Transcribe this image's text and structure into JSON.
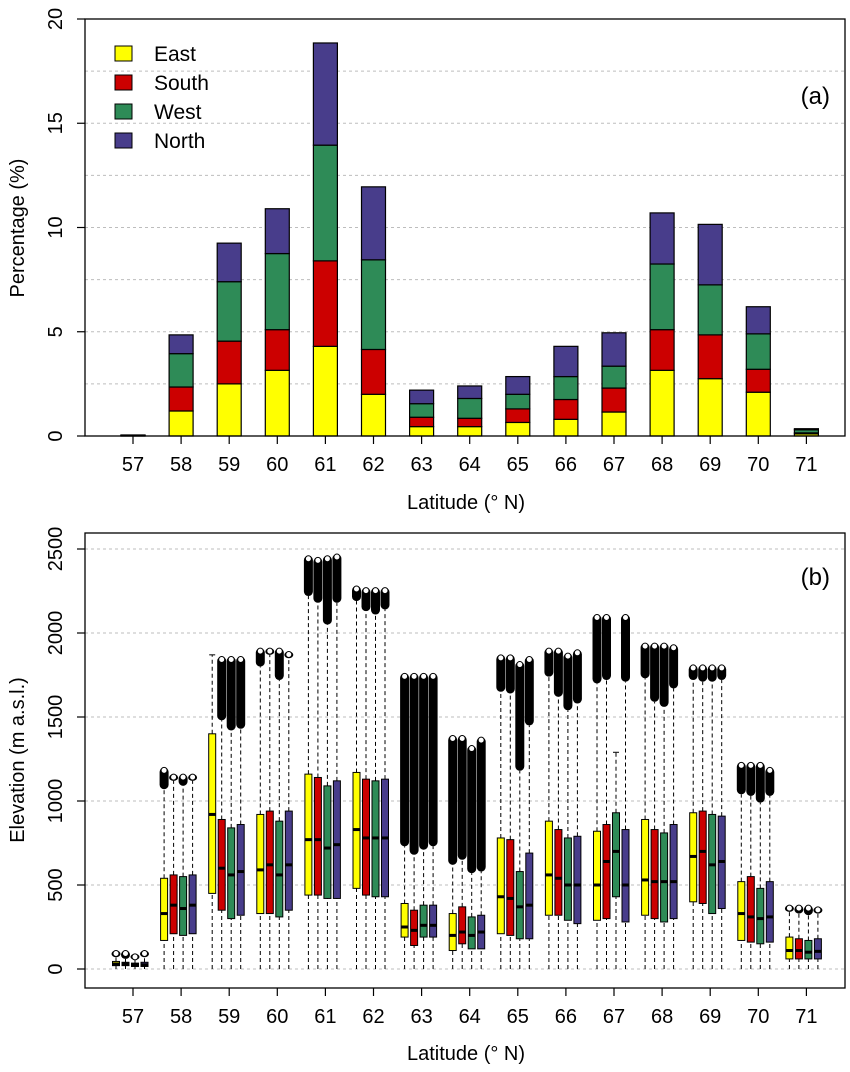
{
  "chart_data": [
    {
      "type": "bar",
      "stacked": true,
      "panel_label": "(a)",
      "title": "",
      "xlabel": "Latitude (° N)",
      "ylabel": "Percentage (%)",
      "ylim": [
        0,
        20
      ],
      "yticks": [
        0,
        5,
        10,
        15,
        20
      ],
      "grid": "horizontal dotted every 2.5 units",
      "legend_position": "top-left",
      "categories": [
        "57",
        "58",
        "59",
        "60",
        "61",
        "62",
        "63",
        "64",
        "65",
        "66",
        "67",
        "68",
        "69",
        "70",
        "71"
      ],
      "series": [
        {
          "name": "East",
          "color": "#ffff00",
          "values": [
            0.02,
            1.2,
            2.5,
            3.15,
            4.3,
            2.0,
            0.45,
            0.45,
            0.65,
            0.8,
            1.15,
            3.15,
            2.75,
            2.1,
            0.1
          ]
        },
        {
          "name": "South",
          "color": "#cc0000",
          "values": [
            0.01,
            1.15,
            2.05,
            1.95,
            4.1,
            2.15,
            0.45,
            0.4,
            0.65,
            0.95,
            1.15,
            1.95,
            2.1,
            1.1,
            0.05
          ]
        },
        {
          "name": "West",
          "color": "#2e8b57",
          "values": [
            0.01,
            1.6,
            2.85,
            3.65,
            5.55,
            4.3,
            0.65,
            0.95,
            0.7,
            1.1,
            1.05,
            3.15,
            2.4,
            1.7,
            0.15
          ]
        },
        {
          "name": "North",
          "color": "#483d8b",
          "values": [
            0.01,
            0.9,
            1.85,
            2.15,
            4.9,
            3.5,
            0.65,
            0.6,
            0.85,
            1.45,
            1.6,
            2.45,
            2.9,
            1.3,
            0.05
          ]
        }
      ]
    },
    {
      "type": "boxplot",
      "panel_label": "(b)",
      "title": "",
      "xlabel": "Latitude (° N)",
      "ylabel": "Elevation (m a.s.l.)",
      "ylim": [
        0,
        2500
      ],
      "yticks": [
        0,
        500,
        1000,
        1500,
        2000,
        2500
      ],
      "grid": "horizontal dotted every 500 units",
      "categories": [
        "57",
        "58",
        "59",
        "60",
        "61",
        "62",
        "63",
        "64",
        "65",
        "66",
        "67",
        "68",
        "69",
        "70",
        "71"
      ],
      "series_order": [
        "East",
        "South",
        "West",
        "North"
      ],
      "series_colors": [
        "#ffff00",
        "#cc0000",
        "#2e8b57",
        "#483d8b"
      ],
      "boxes": [
        [
          [
            0,
            20,
            30,
            45,
            70,
            70,
            110
          ],
          [
            0,
            20,
            30,
            40,
            60,
            60,
            110
          ],
          [
            0,
            15,
            25,
            35,
            55,
            55,
            90
          ],
          [
            0,
            15,
            25,
            40,
            70,
            70,
            110
          ]
        ],
        [
          [
            0,
            170,
            330,
            540,
            1070,
            1070,
            1200
          ],
          [
            0,
            210,
            380,
            560,
            1120,
            1120,
            1160
          ],
          [
            0,
            200,
            360,
            550,
            1090,
            1090,
            1160
          ],
          [
            0,
            210,
            380,
            560,
            1120,
            1120,
            1160
          ]
        ],
        [
          [
            0,
            450,
            920,
            1400,
            1870,
            0,
            0
          ],
          [
            0,
            350,
            600,
            890,
            1480,
            1480,
            1860
          ],
          [
            0,
            300,
            560,
            840,
            1420,
            1420,
            1860
          ],
          [
            0,
            320,
            580,
            860,
            1430,
            1430,
            1860
          ]
        ],
        [
          [
            0,
            330,
            590,
            920,
            1800,
            1800,
            1910
          ],
          [
            0,
            330,
            620,
            940,
            1870,
            1870,
            1910
          ],
          [
            0,
            310,
            560,
            880,
            1720,
            1720,
            1910
          ],
          [
            0,
            350,
            620,
            940,
            1850,
            1850,
            1890
          ]
        ],
        [
          [
            0,
            440,
            770,
            1160,
            2220,
            2220,
            2460
          ],
          [
            0,
            440,
            770,
            1140,
            2180,
            2180,
            2450
          ],
          [
            0,
            420,
            720,
            1090,
            2050,
            2050,
            2460
          ],
          [
            0,
            420,
            740,
            1120,
            2180,
            2180,
            2470
          ]
        ],
        [
          [
            0,
            480,
            830,
            1170,
            2190,
            2190,
            2280
          ],
          [
            0,
            440,
            780,
            1130,
            2130,
            2130,
            2270
          ],
          [
            0,
            430,
            780,
            1120,
            2110,
            2110,
            2270
          ],
          [
            0,
            430,
            780,
            1130,
            2140,
            2140,
            2270
          ]
        ],
        [
          [
            0,
            190,
            250,
            390,
            730,
            730,
            1760
          ],
          [
            0,
            140,
            230,
            350,
            680,
            680,
            1760
          ],
          [
            0,
            190,
            260,
            380,
            710,
            710,
            1760
          ],
          [
            0,
            190,
            260,
            380,
            730,
            730,
            1760
          ]
        ],
        [
          [
            0,
            110,
            200,
            330,
            620,
            620,
            1390
          ],
          [
            0,
            150,
            220,
            370,
            650,
            650,
            1390
          ],
          [
            0,
            120,
            200,
            310,
            570,
            570,
            1330
          ],
          [
            0,
            120,
            220,
            320,
            580,
            580,
            1380
          ]
        ],
        [
          [
            0,
            210,
            430,
            780,
            1650,
            1650,
            1870
          ],
          [
            0,
            200,
            420,
            770,
            1640,
            1640,
            1870
          ],
          [
            0,
            180,
            370,
            580,
            1180,
            1180,
            1830
          ],
          [
            0,
            180,
            380,
            690,
            1450,
            1450,
            1860
          ]
        ],
        [
          [
            0,
            320,
            560,
            880,
            1740,
            1740,
            1910
          ],
          [
            0,
            320,
            540,
            830,
            1620,
            1620,
            1910
          ],
          [
            0,
            290,
            500,
            780,
            1540,
            1540,
            1880
          ],
          [
            0,
            270,
            500,
            790,
            1580,
            1580,
            1900
          ]
        ],
        [
          [
            0,
            290,
            500,
            820,
            1700,
            1700,
            2110
          ],
          [
            0,
            300,
            640,
            860,
            1720,
            1720,
            2110
          ],
          [
            0,
            430,
            700,
            930,
            1290,
            0,
            0
          ],
          [
            0,
            280,
            500,
            830,
            1710,
            1710,
            2110
          ]
        ],
        [
          [
            0,
            320,
            530,
            890,
            1730,
            1730,
            1940
          ],
          [
            0,
            300,
            520,
            830,
            1590,
            1590,
            1940
          ],
          [
            0,
            280,
            520,
            810,
            1560,
            1560,
            1940
          ],
          [
            0,
            300,
            520,
            860,
            1670,
            1670,
            1930
          ]
        ],
        [
          [
            0,
            400,
            670,
            930,
            1720,
            1720,
            1810
          ],
          [
            0,
            390,
            700,
            940,
            1710,
            1710,
            1810
          ],
          [
            0,
            330,
            620,
            920,
            1710,
            1710,
            1810
          ],
          [
            0,
            360,
            640,
            910,
            1720,
            1720,
            1810
          ]
        ],
        [
          [
            0,
            170,
            330,
            520,
            1040,
            1040,
            1230
          ],
          [
            0,
            160,
            310,
            550,
            1030,
            1030,
            1230
          ],
          [
            0,
            150,
            300,
            480,
            990,
            990,
            1230
          ],
          [
            0,
            160,
            310,
            520,
            1030,
            1030,
            1200
          ]
        ],
        [
          [
            0,
            60,
            110,
            190,
            340,
            340,
            380
          ],
          [
            0,
            60,
            110,
            180,
            330,
            330,
            380
          ],
          [
            0,
            60,
            100,
            170,
            320,
            320,
            380
          ],
          [
            0,
            60,
            105,
            180,
            330,
            330,
            370
          ]
        ]
      ]
    }
  ]
}
